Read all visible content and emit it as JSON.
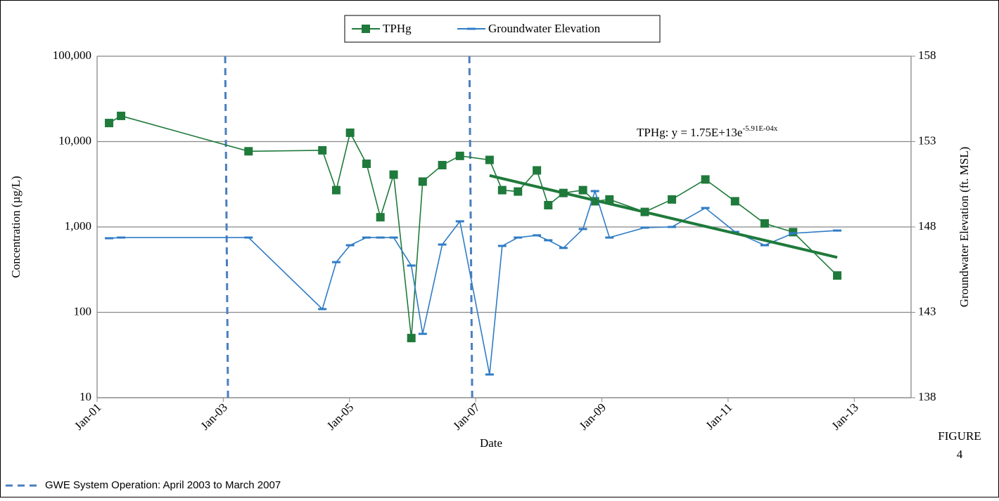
{
  "chart_data": {
    "type": "line",
    "xlabel": "Date",
    "ylabel": "Concentration (µg/L)",
    "y2label": "Groundwater Elevation (ft. MSL)",
    "figure_label": [
      "FIGURE",
      "4"
    ],
    "xlim": [
      2001,
      2013.9
    ],
    "xticks": [
      {
        "value": 2001,
        "label": "Jan-01"
      },
      {
        "value": 2003,
        "label": "Jan-03"
      },
      {
        "value": 2005,
        "label": "Jan-05"
      },
      {
        "value": 2007,
        "label": "Jan-07"
      },
      {
        "value": 2009,
        "label": "Jan-09"
      },
      {
        "value": 2011,
        "label": "Jan-11"
      },
      {
        "value": 2013,
        "label": "Jan-13"
      }
    ],
    "yscale": "log",
    "ylim": [
      10,
      100000
    ],
    "yticks": [
      10,
      100,
      {
        "value": 1000,
        "label": "1,000"
      },
      {
        "value": 10000,
        "label": "10,000"
      },
      {
        "value": 100000,
        "label": "100,000"
      }
    ],
    "y2lim": [
      138,
      158
    ],
    "y2ticks": [
      138,
      143,
      148,
      153,
      158
    ],
    "grid": true,
    "legend": "top",
    "series": [
      {
        "name": "TPHg",
        "color": "#1f7a3b",
        "marker": "square",
        "x": [
          2001.19,
          2001.38,
          2003.4,
          2004.57,
          2004.79,
          2005.01,
          2005.27,
          2005.49,
          2005.7,
          2005.98,
          2006.16,
          2006.47,
          2006.75,
          2007.22,
          2007.42,
          2007.67,
          2007.97,
          2008.15,
          2008.39,
          2008.7,
          2008.89,
          2009.12,
          2009.68,
          2010.11,
          2010.64,
          2011.11,
          2011.58,
          2012.03,
          2012.73
        ],
        "values": [
          16500,
          20000,
          7700,
          7900,
          2700,
          12700,
          5500,
          1300,
          4100,
          50,
          3400,
          5300,
          6800,
          6100,
          2700,
          2600,
          4600,
          1800,
          2500,
          2700,
          2000,
          2100,
          1500,
          2100,
          3600,
          2000,
          1100,
          870,
          270
        ]
      },
      {
        "name": "Groundwater Elevation",
        "color": "#2f7cc5",
        "marker": "dash",
        "axis": "y2",
        "x": [
          2001.19,
          2001.38,
          2003.4,
          2004.57,
          2004.79,
          2005.01,
          2005.27,
          2005.49,
          2005.7,
          2005.98,
          2006.16,
          2006.47,
          2006.75,
          2007.22,
          2007.42,
          2007.67,
          2007.97,
          2008.15,
          2008.39,
          2008.7,
          2008.89,
          2009.12,
          2009.68,
          2010.11,
          2010.64,
          2011.11,
          2011.58,
          2012.03,
          2012.73
        ],
        "values": [
          147.34,
          147.38,
          147.38,
          143.19,
          145.94,
          146.93,
          147.38,
          147.38,
          147.38,
          145.74,
          141.74,
          146.97,
          148.33,
          139.36,
          146.89,
          147.38,
          147.51,
          147.22,
          146.77,
          147.88,
          150.1,
          147.38,
          147.96,
          148.0,
          149.11,
          147.71,
          146.93,
          147.63,
          147.79
        ]
      }
    ],
    "trendline": {
      "label": "TPHg: y = 1.75E+13e",
      "exponent": "-5.91E-04x",
      "color": "#1f7a3b",
      "x": [
        2007.22,
        2012.73
      ],
      "values": [
        4000,
        440
      ]
    },
    "reference_lines": {
      "label": "GWE System Operation: April 2003 to March 2007",
      "color": "#4a7ebf",
      "x": [
        2003.03,
        2006.9
      ]
    }
  }
}
